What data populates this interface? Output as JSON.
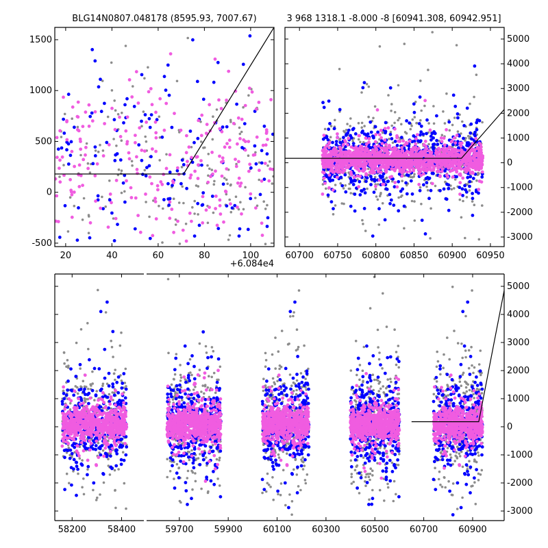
{
  "chart_data": [
    {
      "id": "top-left",
      "type": "scatter",
      "title": "BLG14N0807.048178 (8595.93, 7007.67)",
      "x_offset_label": "+6.084e4",
      "xlim": [
        15.3,
        110.1
      ],
      "ylim": [
        -534,
        1621
      ],
      "xticks": [
        20,
        40,
        60,
        80,
        100
      ],
      "yticks": [
        -500,
        0,
        500,
        1000,
        1500
      ],
      "ytick_side": "left",
      "clusters": [
        {
          "color": "gray",
          "x": [
            15,
            110
          ],
          "center": 250,
          "spread": 450,
          "count": 160
        },
        {
          "color": "blue",
          "x": [
            15,
            110
          ],
          "center": 280,
          "spread": 420,
          "count": 140
        },
        {
          "color": "magenta",
          "x": [
            15,
            110
          ],
          "center": 300,
          "spread": 380,
          "count": 240
        }
      ],
      "model_line": {
        "x": [
          15.3,
          71,
          110.1
        ],
        "y": [
          180,
          180,
          1621
        ]
      }
    },
    {
      "id": "top-right",
      "type": "scatter",
      "title": "3 968 1318.1 -8.000 -8 [60941.308, 60942.951]",
      "xlim": [
        60681,
        60968
      ],
      "ylim": [
        -3388,
        5470
      ],
      "xticks": [
        60700,
        60750,
        60800,
        60850,
        60900,
        60950
      ],
      "yticks": [
        -3000,
        -2000,
        -1000,
        0,
        1000,
        2000,
        3000,
        4000,
        5000
      ],
      "ytick_side": "right",
      "clusters": [
        {
          "color": "gray",
          "x": [
            60730,
            60940
          ],
          "center": 150,
          "spread": 900,
          "count": 500
        },
        {
          "color": "blue",
          "x": [
            60730,
            60940
          ],
          "center": 150,
          "spread": 600,
          "count": 700
        },
        {
          "color": "magenta",
          "x": [
            60730,
            60940
          ],
          "center": 150,
          "spread": 250,
          "count": 1400
        }
      ],
      "model_line": {
        "x": [
          60681,
          60912,
          60968
        ],
        "y": [
          180,
          180,
          2150
        ]
      }
    },
    {
      "id": "bottom",
      "type": "scatter",
      "broken_x_axis": true,
      "segments": [
        {
          "xlim": [
            58130,
            58490
          ],
          "xticks": [
            58200,
            58400
          ]
        },
        {
          "xlim": [
            59566,
            61029
          ],
          "xticks": [
            59700,
            59900,
            60100,
            60300,
            60500,
            60700,
            60900
          ]
        }
      ],
      "ylim": [
        -3341,
        5439
      ],
      "yticks": [
        -3000,
        -2000,
        -1000,
        0,
        1000,
        2000,
        3000,
        4000,
        5000
      ],
      "ytick_side": "right",
      "seasons": [
        [
          58160,
          58420
        ],
        [
          59650,
          59870
        ],
        [
          60040,
          60230
        ],
        [
          60400,
          60600
        ],
        [
          60740,
          60940
        ]
      ],
      "cluster_template": [
        {
          "color": "gray",
          "center": 150,
          "spread": 1000,
          "count": 300
        },
        {
          "color": "blue",
          "center": 100,
          "spread": 700,
          "count": 350
        },
        {
          "color": "magenta",
          "center": 100,
          "spread": 280,
          "count": 700
        }
      ],
      "model_line": {
        "x": [
          60650,
          60925,
          61029
        ],
        "y": [
          180,
          180,
          4850
        ]
      }
    }
  ],
  "colors": {
    "gray": "#8c8c8c",
    "blue": "#0000ff",
    "magenta": "#f05ce0",
    "axis": "#000000"
  }
}
